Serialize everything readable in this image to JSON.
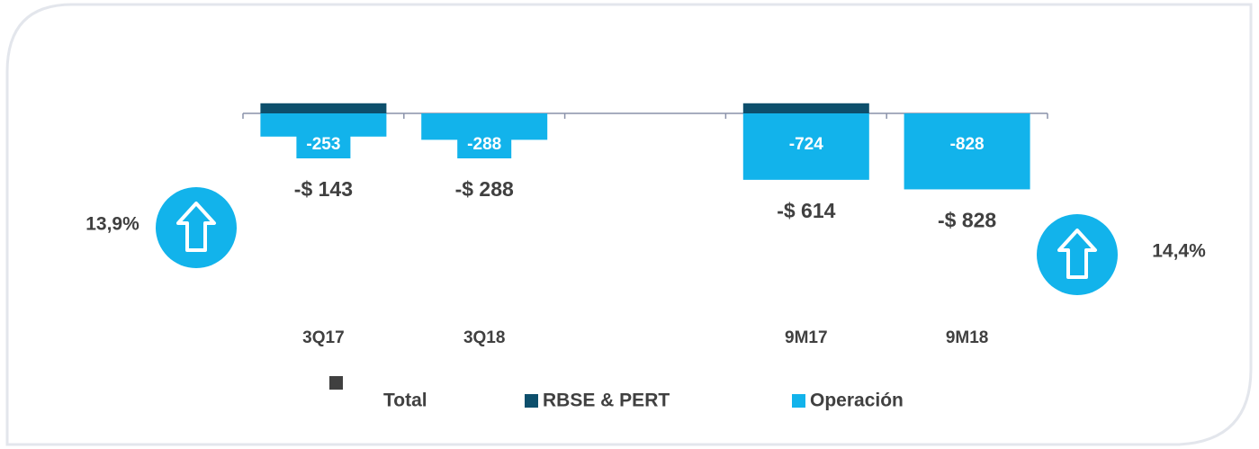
{
  "chart_data": {
    "type": "bar",
    "stacked": true,
    "categories": [
      "3Q17",
      "3Q18",
      null,
      "9M17",
      "9M18"
    ],
    "series": [
      {
        "name": "Total",
        "color": "#404040",
        "values": [
          -143,
          -288,
          null,
          -614,
          -828
        ],
        "value_labels": [
          "-$ 143",
          "-$ 288",
          null,
          "-$ 614",
          "-$ 828"
        ]
      },
      {
        "name": "RBSE & PERT",
        "color": "#0d4f6c",
        "values": [
          110,
          0,
          null,
          110,
          0
        ]
      },
      {
        "name": "Operación",
        "color": "#12b3eb",
        "values": [
          -253,
          -288,
          null,
          -724,
          -828
        ]
      }
    ],
    "ylim": [
      -1000,
      200
    ],
    "annotations": [
      "13,9%",
      "14,4%"
    ]
  }
}
